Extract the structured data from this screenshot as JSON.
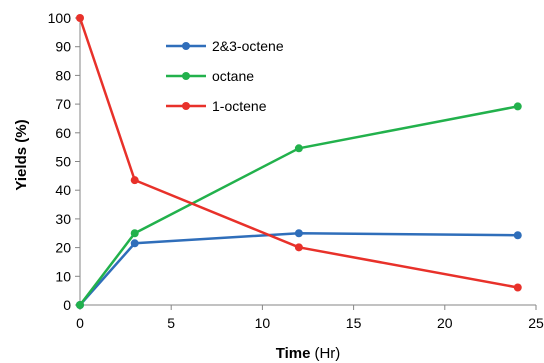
{
  "chart_data": {
    "type": "line",
    "xlabel": "Time",
    "xlabel_unit": "(Hr)",
    "ylabel": "Yields (%)",
    "xlim": [
      0,
      25
    ],
    "ylim": [
      0,
      100
    ],
    "xticks": [
      0,
      5,
      10,
      15,
      20,
      25
    ],
    "yticks": [
      0,
      10,
      20,
      30,
      40,
      50,
      60,
      70,
      80,
      90,
      100
    ],
    "grid": false,
    "legend_position": "top-center",
    "series": [
      {
        "name": "2&3-octene",
        "color": "#2f6eba",
        "x": [
          0,
          3,
          12,
          24
        ],
        "y": [
          0,
          21.5,
          25,
          24.3
        ]
      },
      {
        "name": "octane",
        "color": "#22b14c",
        "x": [
          0,
          3,
          12,
          24
        ],
        "y": [
          0,
          25,
          54.6,
          69.2
        ]
      },
      {
        "name": "1-octene",
        "color": "#e8312a",
        "x": [
          0,
          3,
          12,
          24
        ],
        "y": [
          100,
          43.5,
          20.1,
          6.1
        ]
      }
    ]
  }
}
